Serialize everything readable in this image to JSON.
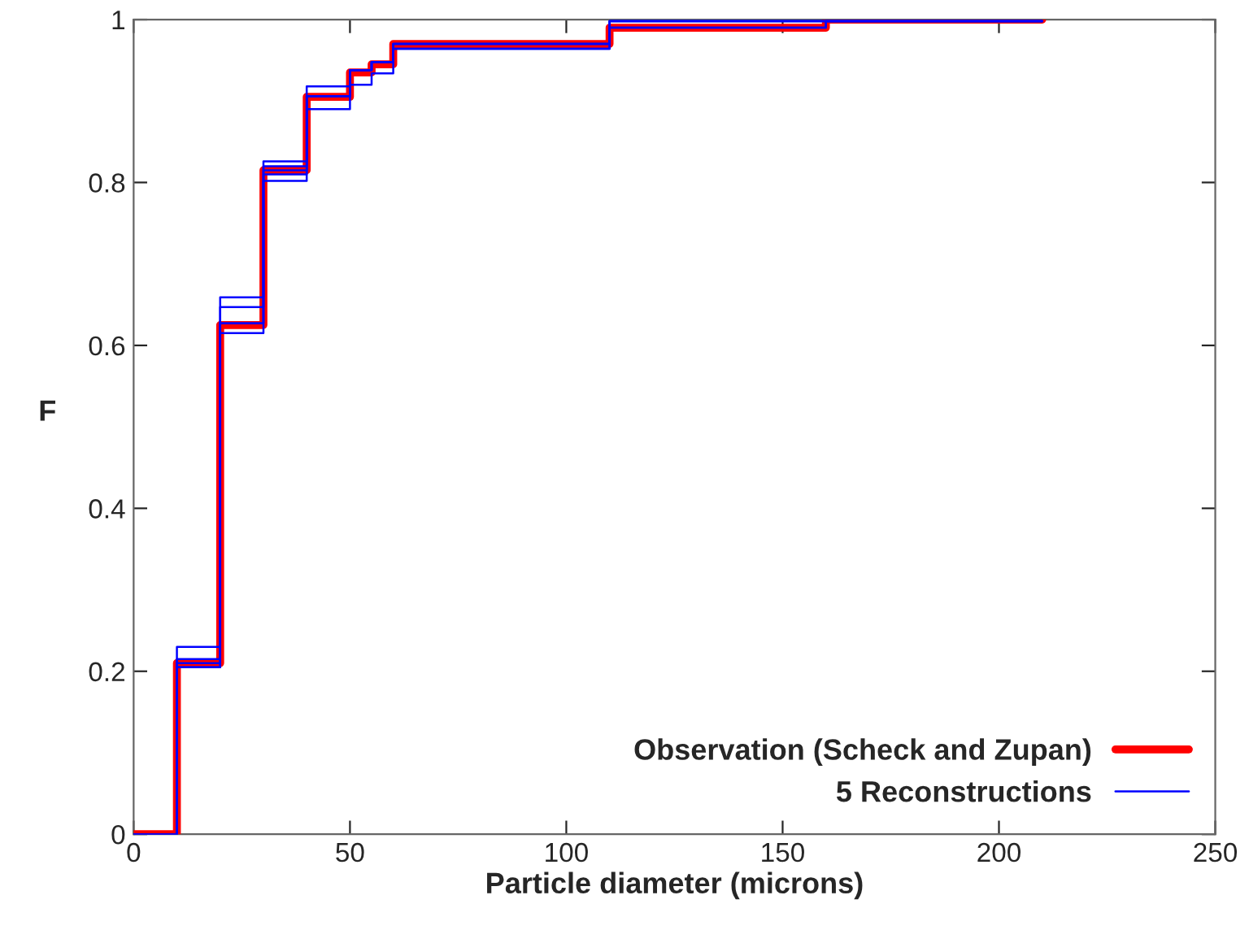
{
  "chart_data": {
    "type": "step",
    "xlabel": "Particle diameter (microns)",
    "ylabel": "F",
    "x": [
      0,
      10,
      20,
      30,
      40,
      50,
      55,
      60,
      110,
      160,
      210
    ],
    "xlim": [
      0,
      250
    ],
    "ylim": [
      0,
      1
    ],
    "xticks": [
      0,
      50,
      100,
      150,
      200,
      250
    ],
    "yticks": [
      0,
      0.2,
      0.4,
      0.6,
      0.8,
      1
    ],
    "grid": false,
    "legend": "bottom right",
    "line_style": "solid",
    "series": [
      {
        "name": "Observation (Scheck and Zupan)",
        "color": "#ff0000",
        "values": [
          0,
          0.21,
          0.625,
          0.815,
          0.905,
          0.935,
          0.945,
          0.97,
          0.99,
          1.0,
          1.0
        ]
      },
      {
        "name": "5 Reconstructions",
        "color": "#0000ff",
        "values": [
          0,
          0.23,
          0.659,
          0.826,
          0.918,
          0.938,
          0.948,
          0.97,
          0.998,
          0.998,
          0.998
        ]
      },
      {
        "color": "#0000ff",
        "values": [
          0,
          0.215,
          0.647,
          0.82,
          0.906,
          0.938,
          0.948,
          0.964,
          0.99,
          0.998,
          0.998
        ]
      },
      {
        "color": "#0000ff",
        "values": [
          0,
          0.21,
          0.627,
          0.81,
          0.89,
          0.92,
          0.934,
          0.964,
          0.998,
          0.998,
          0.998
        ]
      },
      {
        "color": "#0000ff",
        "values": [
          0,
          0.205,
          0.615,
          0.802,
          0.906,
          0.938,
          0.948,
          0.97,
          0.998,
          0.998,
          0.998
        ]
      },
      {
        "color": "#0000ff",
        "values": [
          0,
          0.205,
          0.627,
          0.815,
          0.906,
          0.938,
          0.948,
          0.97,
          0.99,
          0.998,
          0.998
        ]
      }
    ]
  }
}
